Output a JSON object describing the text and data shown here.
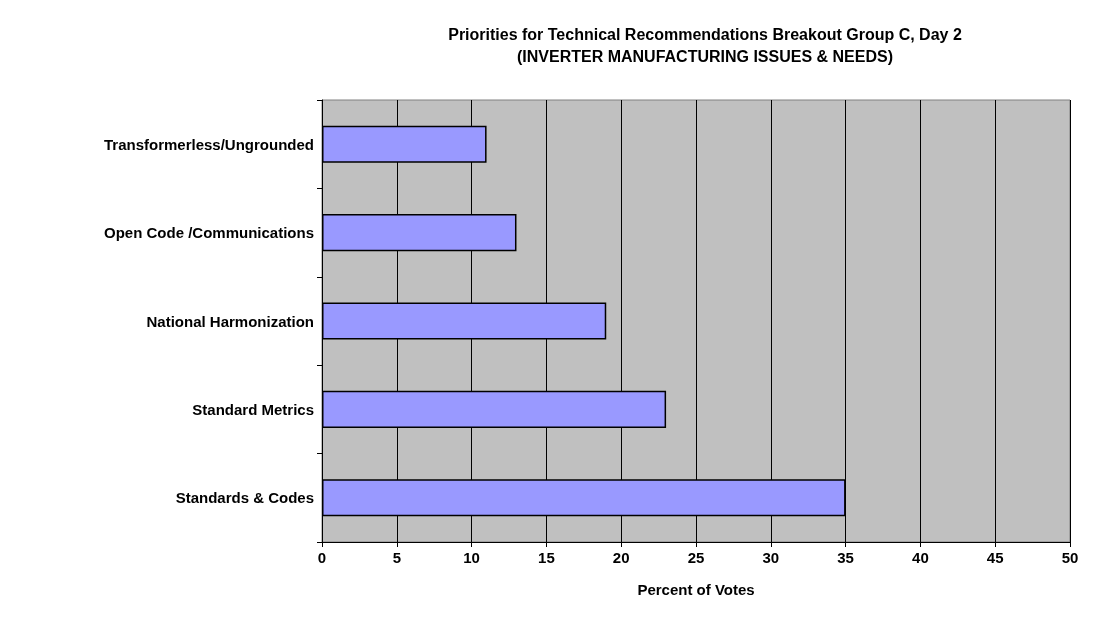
{
  "chart_data": {
    "type": "bar",
    "orientation": "horizontal",
    "title": "Priorities for Technical Recommendations Breakout Group C, Day 2\n(INVERTER MANUFACTURING ISSUES & NEEDS)",
    "xlabel": "Percent of Votes",
    "categories": [
      "Transformerless/Ungrounded",
      "Open Code /Communications",
      "National Harmonization",
      "Standard Metrics",
      "Standards & Codes"
    ],
    "values": [
      11,
      13,
      19,
      23,
      35
    ],
    "color": "#9999ff",
    "xlim": [
      0,
      50
    ],
    "xticks": [
      0,
      5,
      10,
      15,
      20,
      25,
      30,
      35,
      40,
      45,
      50
    ],
    "grid": "x"
  }
}
